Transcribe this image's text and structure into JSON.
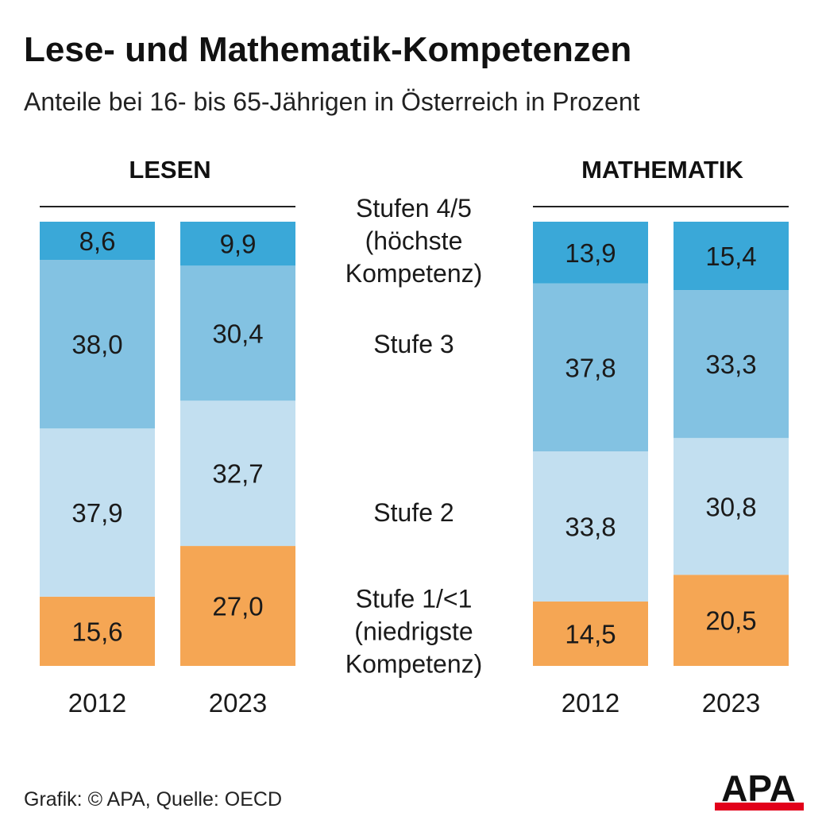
{
  "header": {
    "title": "Lese- und Mathematik-Kompetenzen",
    "subtitle": "Anteile bei 16- bis 65-Jährigen in Österreich in Prozent"
  },
  "footer": {
    "source": "Grafik: © APA, Quelle: OECD",
    "logo_text": "APA"
  },
  "colors": {
    "level45": "#3aa8d8",
    "level3": "#83c2e2",
    "level2": "#c2dff0",
    "level1": "#f5a654",
    "logo_red": "#e2001a"
  },
  "chart_data": {
    "type": "bar",
    "stacked": true,
    "panels": [
      {
        "title": "LESEN",
        "categories": [
          "2012",
          "2023"
        ],
        "series": [
          {
            "name": "Stufe 1/<1 (niedrigste Kompetenz)",
            "values": [
              15.6,
              27.0
            ],
            "labels": [
              "15,6",
              "27,0"
            ],
            "color_key": "level1"
          },
          {
            "name": "Stufe 2",
            "values": [
              37.9,
              32.7
            ],
            "labels": [
              "37,9",
              "32,7"
            ],
            "color_key": "level2"
          },
          {
            "name": "Stufe 3",
            "values": [
              38.0,
              30.4
            ],
            "labels": [
              "38,0",
              "30,4"
            ],
            "color_key": "level3"
          },
          {
            "name": "Stufen 4/5 (höchste Kompetenz)",
            "values": [
              8.6,
              9.9
            ],
            "labels": [
              "8,6",
              "9,9"
            ],
            "color_key": "level45"
          }
        ]
      },
      {
        "title": "MATHEMATIK",
        "categories": [
          "2012",
          "2023"
        ],
        "series": [
          {
            "name": "Stufe 1/<1 (niedrigste Kompetenz)",
            "values": [
              14.5,
              20.5
            ],
            "labels": [
              "14,5",
              "20,5"
            ],
            "color_key": "level1"
          },
          {
            "name": "Stufe 2",
            "values": [
              33.8,
              30.8
            ],
            "labels": [
              "33,8",
              "30,8"
            ],
            "color_key": "level2"
          },
          {
            "name": "Stufe 3",
            "values": [
              37.8,
              33.3
            ],
            "labels": [
              "37,8",
              "33,3"
            ],
            "color_key": "level3"
          },
          {
            "name": "Stufen 4/5 (höchste Kompetenz)",
            "values": [
              13.9,
              15.4
            ],
            "labels": [
              "13,9",
              "15,4"
            ],
            "color_key": "level45"
          }
        ]
      }
    ],
    "level_labels": [
      {
        "key": "level45",
        "lines": [
          "Stufen 4/5",
          "(höchste",
          "Kompetenz)"
        ]
      },
      {
        "key": "level3",
        "lines": [
          "Stufe 3"
        ]
      },
      {
        "key": "level2",
        "lines": [
          "Stufe 2"
        ]
      },
      {
        "key": "level1",
        "lines": [
          "Stufe 1/<1",
          "(niedrigste",
          "Kompetenz)"
        ]
      }
    ],
    "ylim": [
      0,
      100
    ]
  }
}
